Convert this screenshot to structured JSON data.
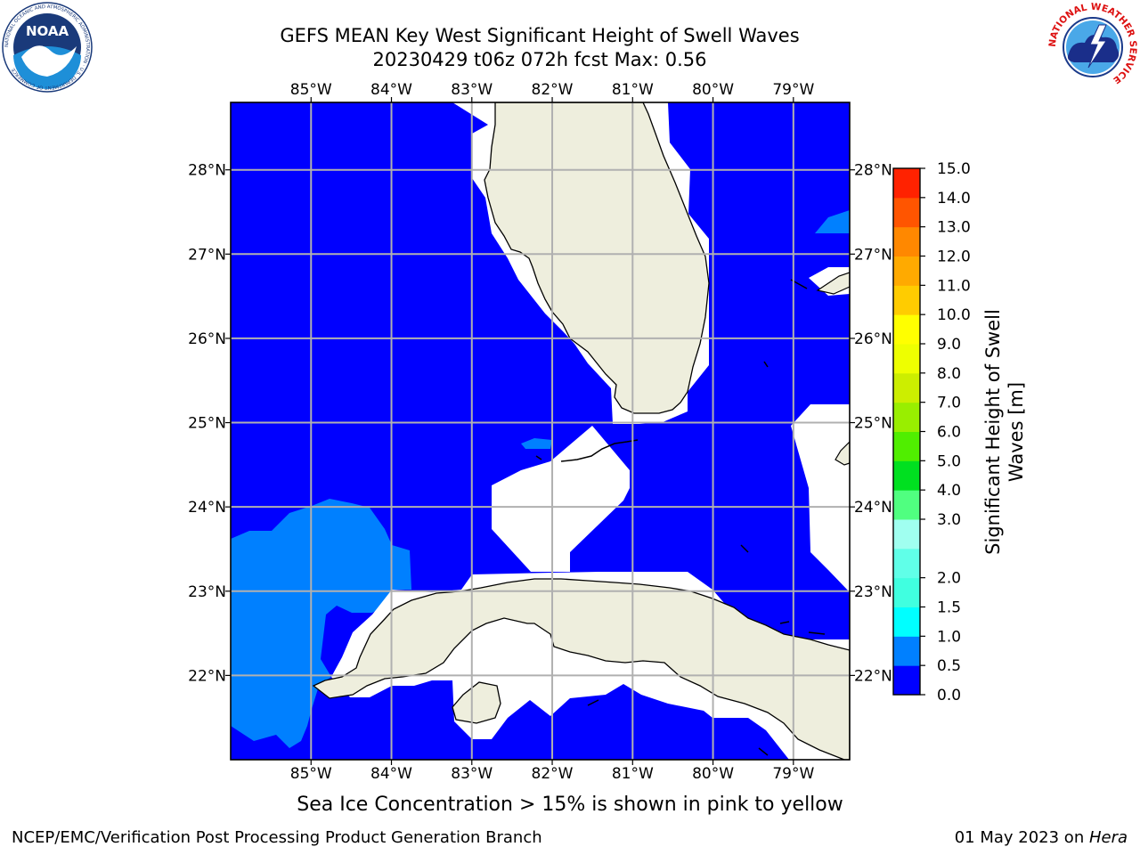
{
  "title": {
    "line1": "GEFS MEAN Key West Significant Height of Swell Waves",
    "line2": "20230429 t06z 072h fcst   Max: 0.56"
  },
  "map": {
    "lon_ticks": [
      "85°W",
      "84°W",
      "83°W",
      "82°W",
      "81°W",
      "80°W",
      "79°W"
    ],
    "lat_ticks": [
      "28°N",
      "27°N",
      "26°N",
      "25°N",
      "24°N",
      "23°N",
      "22°N"
    ],
    "lon_range": [
      -86.0,
      -78.3
    ],
    "lat_range": [
      21.0,
      28.8
    ],
    "colors": {
      "ocean_level_1": "#0000ff",
      "ocean_level_2": "#0080ff",
      "land": "#eeeedd",
      "nodata": "#ffffff",
      "grid": "#b0b0b0"
    }
  },
  "colorbar": {
    "levels": [
      "0.0",
      "0.5",
      "1.0",
      "1.5",
      "2.0",
      "2.5",
      "3.0",
      "4.0",
      "5.0",
      "6.0",
      "7.0",
      "8.0",
      "9.0",
      "10.0",
      "11.0",
      "12.0",
      "13.0",
      "14.0",
      "15.0"
    ],
    "tick_labels": [
      "0.0",
      "0.5",
      "1.0",
      "1.5",
      "2.0",
      "3.0",
      "4.0",
      "5.0",
      "6.0",
      "7.0",
      "8.0",
      "9.0",
      "10.0",
      "11.0",
      "12.0",
      "13.0",
      "14.0",
      "15.0"
    ],
    "colors": [
      "#0000ff",
      "#0080ff",
      "#00ffff",
      "#40ffe0",
      "#60ffe8",
      "#a0fff0",
      "#50ff80",
      "#00e020",
      "#50ee00",
      "#99ee00",
      "#ccee00",
      "#eeff00",
      "#ffff00",
      "#ffcc00",
      "#ffaa00",
      "#ff8800",
      "#ff5500",
      "#ff2200",
      "#ff0000"
    ],
    "label_line1": "Significant Height of Swell",
    "label_line2": "Waves [m]"
  },
  "note": "Sea Ice Concentration > 15% is shown in pink to yellow",
  "footer": {
    "left": "NCEP/EMC/Verification Post Processing Product Generation Branch",
    "right_date": "01 May 2023 on ",
    "right_host": "Hera"
  },
  "logos": {
    "noaa_text": "NOAA",
    "noaa_ring": "NATIONAL OCEANIC AND ATMOSPHERIC ADMINISTRATION · U.S. DEPARTMENT OF COMMERCE",
    "nws_ring": "NATIONAL WEATHER SERVICE"
  }
}
